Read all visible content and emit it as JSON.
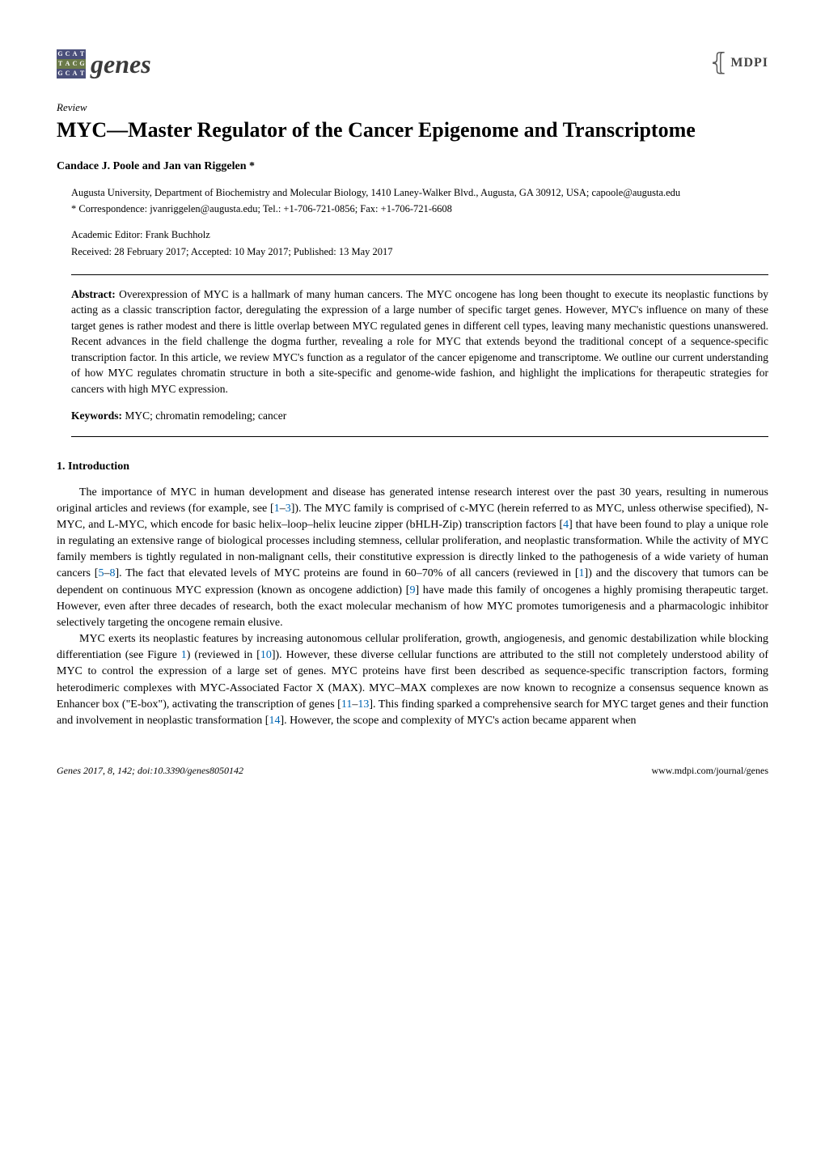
{
  "journal": {
    "logo_rows": [
      {
        "bg": "#4a4f7a",
        "glyphs": [
          "G",
          "C",
          "A",
          "T"
        ]
      },
      {
        "bg": "#6b7a49",
        "glyphs": [
          "T",
          "A",
          "C",
          "G"
        ]
      },
      {
        "bg": "#4a4f7a",
        "glyphs": [
          "G",
          "C",
          "A",
          "T"
        ]
      }
    ],
    "name": "genes"
  },
  "publisher_logo": "MDPI",
  "article_type": "Review",
  "title": "MYC—Master Regulator of the Cancer Epigenome and Transcriptome",
  "authors": "Candace J. Poole and Jan van Riggelen *",
  "affiliation": "Augusta University, Department of Biochemistry and Molecular Biology, 1410 Laney-Walker Blvd., Augusta, GA 30912, USA; capoole@augusta.edu",
  "correspondence": "*  Correspondence: jvanriggelen@augusta.edu; Tel.: +1-706-721-0856; Fax: +1-706-721-6608",
  "editor_line": "Academic Editor: Frank Buchholz",
  "dates_line": "Received: 28 February 2017; Accepted: 10 May 2017; Published: 13 May 2017",
  "abstract_label": "Abstract:",
  "abstract_text": " Overexpression of MYC is a hallmark of many human cancers. The MYC oncogene has long been thought to execute its neoplastic functions by acting as a classic transcription factor, deregulating the expression of a large number of specific target genes. However, MYC's influence on many of these target genes is rather modest and there is little overlap between MYC regulated genes in different cell types, leaving many mechanistic questions unanswered. Recent advances in the field challenge the dogma further, revealing a role for MYC that extends beyond the traditional concept of a sequence-specific transcription factor. In this article, we review MYC's function as a regulator of the cancer epigenome and transcriptome. We outline our current understanding of how MYC regulates chromatin structure in both a site-specific and genome-wide fashion, and highlight the implications for therapeutic strategies for cancers with high MYC expression.",
  "keywords_label": "Keywords:",
  "keywords_text": " MYC; chromatin remodeling; cancer",
  "section1_heading": "1. Introduction",
  "p1_a": "The importance of MYC in human development and disease has generated intense research interest over the past 30 years, resulting in numerous original articles and reviews (for example, see [",
  "cite1": "1",
  "p1_b": "–",
  "cite3": "3",
  "p1_c": "]). The MYC family is comprised of c-MYC (herein referred to as MYC, unless otherwise specified), N-MYC, and L-MYC, which encode for basic helix–loop–helix leucine zipper (bHLH-Zip) transcription factors [",
  "cite4": "4",
  "p1_d": "] that have been found to play a unique role in regulating an extensive range of biological processes including stemness, cellular proliferation, and neoplastic transformation. While the activity of MYC family members is tightly regulated in non-malignant cells, their constitutive expression is directly linked to the pathogenesis of a wide variety of human cancers [",
  "cite5": "5",
  "p1_e": "–",
  "cite8": "8",
  "p1_f": "]. The fact that elevated levels of MYC proteins are found in 60–70% of all cancers (reviewed in [",
  "cite1b": "1",
  "p1_g": "]) and the discovery that tumors can be dependent on continuous MYC expression (known as oncogene addiction) [",
  "cite9": "9",
  "p1_h": "] have made this family of oncogenes a highly promising therapeutic target. However, even after three decades of research, both the exact molecular mechanism of how MYC promotes tumorigenesis and a pharmacologic inhibitor selectively targeting the oncogene remain elusive.",
  "p2_a": "MYC exerts its neoplastic features by increasing autonomous cellular proliferation, growth, angiogenesis, and genomic destabilization while blocking differentiation (see Figure ",
  "fig1": "1",
  "p2_b": ") (reviewed in [",
  "cite10": "10",
  "p2_c": "]). However, these diverse cellular functions are attributed to the still not completely understood ability of MYC to control the expression of a large set of genes. MYC proteins have first been described as sequence-specific transcription factors, forming heterodimeric complexes with MYC-Associated Factor X (MAX). MYC–MAX complexes are now known to recognize a consensus sequence known as Enhancer box (\"E-box\"), activating the transcription of genes [",
  "cite11": "11",
  "p2_d": "–",
  "cite13": "13",
  "p2_e": "]. This finding sparked a comprehensive search for MYC target genes and their function and involvement in neoplastic transformation [",
  "cite14": "14",
  "p2_f": "]. However, the scope and complexity of MYC's action became apparent when",
  "footer_left": "Genes 2017, 8, 142; doi:10.3390/genes8050142",
  "footer_right": "www.mdpi.com/journal/genes",
  "colors": {
    "link": "#0066b3",
    "text": "#000000",
    "logo_row_purple": "#4a4f7a",
    "logo_row_olive": "#6b7a49"
  },
  "fontsizes_pt": {
    "journal_name": 32,
    "title": 26,
    "authors": 14,
    "body": 14,
    "meta": 12.5,
    "abstract": 13.5,
    "footer": 12
  }
}
